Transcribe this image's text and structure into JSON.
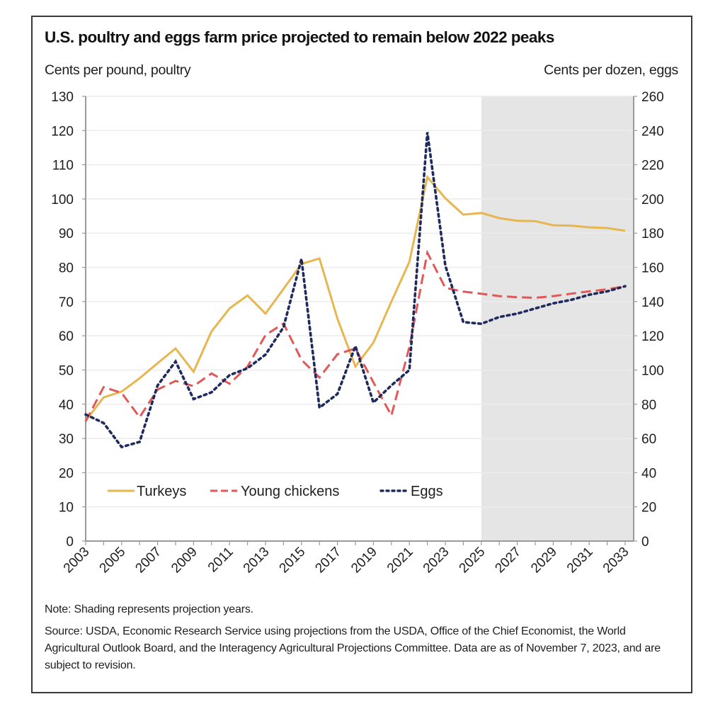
{
  "chart_data": {
    "type": "line",
    "title": "U.S. poultry and eggs farm price projected to remain below 2022 peaks",
    "ylabel_left": "Cents per pound, poultry",
    "ylabel_right": "Cents per dozen, eggs",
    "xlabel": "",
    "ylim_left": [
      0,
      130
    ],
    "ylim_right": [
      0,
      260
    ],
    "yticks_left": [
      0,
      10,
      20,
      30,
      40,
      50,
      60,
      70,
      80,
      90,
      100,
      110,
      120,
      130
    ],
    "yticks_right": [
      0,
      20,
      40,
      60,
      80,
      100,
      120,
      140,
      160,
      180,
      200,
      220,
      240,
      260
    ],
    "xlim": [
      2003,
      2033
    ],
    "xtick_labels": [
      "2003",
      "2005",
      "2007",
      "2009",
      "2011",
      "2013",
      "2015",
      "2017",
      "2019",
      "2021",
      "2023",
      "2025",
      "2027",
      "2029",
      "2031",
      "2033"
    ],
    "x": [
      2003,
      2004,
      2005,
      2006,
      2007,
      2008,
      2009,
      2010,
      2011,
      2012,
      2013,
      2014,
      2015,
      2016,
      2017,
      2018,
      2019,
      2020,
      2021,
      2022,
      2023,
      2024,
      2025,
      2026,
      2027,
      2028,
      2029,
      2030,
      2031,
      2032,
      2033
    ],
    "grid": true,
    "projection_shading": {
      "from": 2025,
      "to": 2033,
      "color": "#E5E5E5"
    },
    "legend_position": "bottom-left",
    "series": [
      {
        "name": "Turkeys",
        "axis": "left",
        "style": "solid",
        "color": "#E8B650",
        "values": [
          35.2,
          42,
          43.7,
          47.6,
          52,
          56.3,
          49.5,
          61.3,
          68,
          71.8,
          66.5,
          73.7,
          81,
          82.6,
          65,
          51,
          58,
          70,
          81.6,
          106.4,
          100.2,
          95.4,
          95.9,
          94.4,
          93.6,
          93.5,
          92.3,
          92.2,
          91.7,
          91.5,
          90.7
        ]
      },
      {
        "name": "Young chickens",
        "axis": "left",
        "style": "dashed",
        "color": "#E05858",
        "values": [
          35,
          45,
          43.3,
          36.2,
          44.3,
          46.8,
          45.3,
          49,
          46,
          51,
          60.2,
          63.6,
          53,
          47.8,
          54.6,
          56.3,
          46.4,
          36.7,
          56.7,
          84.3,
          74,
          72.9,
          72.3,
          71.6,
          71.3,
          71.1,
          71.6,
          72.3,
          73,
          73.6,
          74.5
        ]
      },
      {
        "name": "Eggs",
        "axis": "right",
        "style": "dotted",
        "color": "#1F2A5E",
        "values": [
          74,
          69,
          55,
          58,
          91,
          105,
          83,
          87,
          97,
          101,
          109,
          125,
          165,
          78,
          86,
          114,
          81,
          91,
          100,
          239,
          161,
          128,
          127,
          131,
          133,
          136,
          139,
          141,
          144,
          146,
          149
        ]
      }
    ]
  },
  "notes": {
    "note": "Note: Shading represents projection years.",
    "source": "Source: USDA, Economic Research Service using projections from the USDA, Office of the Chief Economist, the World Agricultural Outlook Board, and the Interagency Agricultural Projections Committee. Data are as of November 7, 2023, and are subject to revision."
  }
}
